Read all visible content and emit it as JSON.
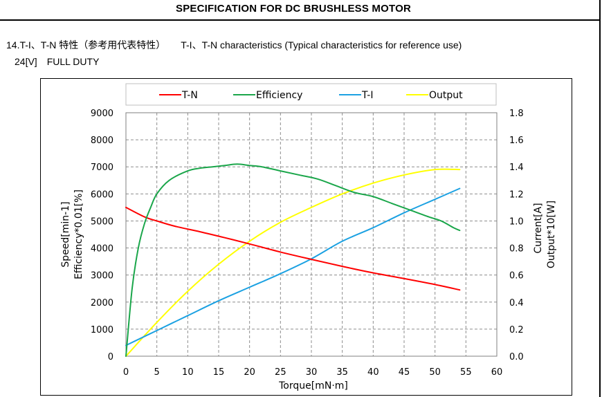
{
  "document": {
    "title": "SPECIFICATION FOR DC BRUSHLESS MOTOR",
    "section_jp": "14.T-I、T-N 特性（参考用代表特性）",
    "section_en": "T-I、T-N characteristics (Typical characteristics for reference use)",
    "voltage": "24[V]",
    "duty": "FULL DUTY"
  },
  "chart_data": {
    "type": "line",
    "xlabel": "Torque[mN·m]",
    "ylabel_left": [
      "Speed[min-1]",
      "Efficiency*0.01[%]"
    ],
    "ylabel_right": [
      "Current[A]",
      "Output*10[W]"
    ],
    "xlim": [
      0,
      60
    ],
    "ylim_left": [
      0,
      9000
    ],
    "ylim_right": [
      0,
      1.8
    ],
    "x_ticks": [
      "0",
      "5",
      "10",
      "15",
      "20",
      "25",
      "30",
      "35",
      "40",
      "45",
      "50",
      "55",
      "60"
    ],
    "y_left_ticks": [
      "0",
      "1000",
      "2000",
      "3000",
      "4000",
      "5000",
      "6000",
      "7000",
      "8000",
      "9000"
    ],
    "y_right_ticks": [
      "0.0",
      "0.2",
      "0.4",
      "0.6",
      "0.8",
      "1.0",
      "1.2",
      "1.4",
      "1.6",
      "1.8"
    ],
    "grid": true,
    "legend_position": "top",
    "series": [
      {
        "name": "T-N",
        "axis": "left",
        "color": "#ff0000",
        "x": [
          0,
          3,
          5,
          8,
          12,
          16,
          20,
          25,
          30,
          35,
          40,
          45,
          50,
          54
        ],
        "y": [
          5500,
          5150,
          5000,
          4800,
          4600,
          4380,
          4150,
          3850,
          3580,
          3320,
          3080,
          2870,
          2650,
          2450
        ]
      },
      {
        "name": "Efficiency",
        "axis": "left",
        "color": "#1aa64a",
        "x": [
          0,
          1,
          2,
          3,
          4,
          5,
          7,
          10,
          12,
          14,
          16,
          18,
          20,
          22,
          25,
          28,
          31,
          34,
          37,
          40,
          43,
          46,
          49,
          51,
          53,
          54
        ],
        "y": [
          0,
          2500,
          4000,
          4900,
          5500,
          6000,
          6500,
          6850,
          6950,
          7000,
          7050,
          7100,
          7050,
          7000,
          6850,
          6700,
          6550,
          6300,
          6050,
          5900,
          5650,
          5400,
          5150,
          5000,
          4750,
          4650
        ]
      },
      {
        "name": "T-I",
        "axis": "right",
        "color": "#1ba1e2",
        "x": [
          0,
          5,
          10,
          15,
          20,
          25,
          30,
          35,
          40,
          45,
          50,
          54
        ],
        "y": [
          0.08,
          0.19,
          0.3,
          0.41,
          0.51,
          0.61,
          0.72,
          0.85,
          0.95,
          1.06,
          1.16,
          1.24
        ]
      },
      {
        "name": "Output",
        "axis": "right",
        "color": "#ffff00",
        "x": [
          0,
          5,
          10,
          15,
          20,
          25,
          30,
          35,
          40,
          45,
          50,
          54
        ],
        "y": [
          0.0,
          0.25,
          0.48,
          0.68,
          0.85,
          0.99,
          1.1,
          1.2,
          1.28,
          1.34,
          1.38,
          1.38
        ]
      }
    ]
  }
}
